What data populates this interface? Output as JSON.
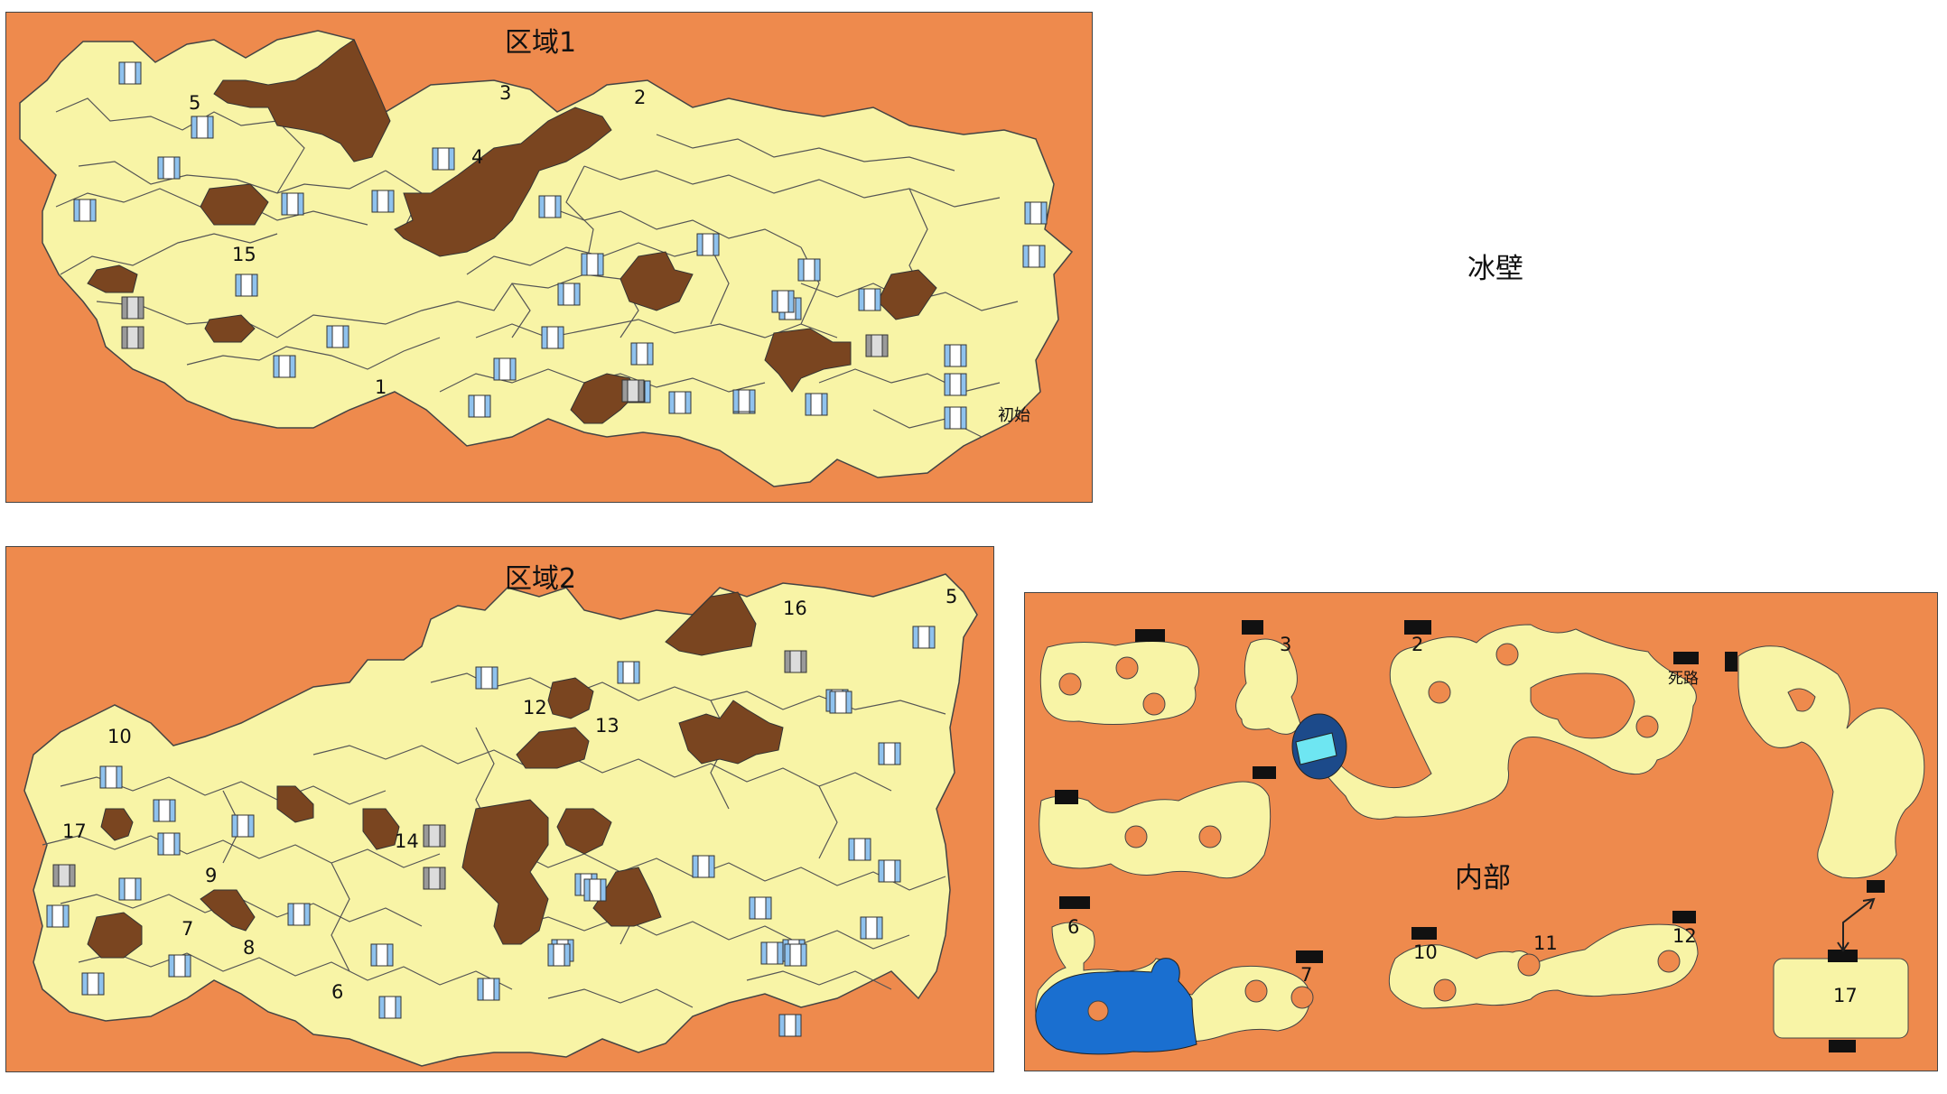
{
  "ice_wall_label": "冰壁",
  "area1": {
    "title": "区域1",
    "labels": [
      "1",
      "2",
      "3",
      "4",
      "5",
      "15",
      "初始"
    ]
  },
  "area2": {
    "title": "区域2",
    "labels": [
      "5",
      "6",
      "7",
      "8",
      "9",
      "10",
      "12",
      "13",
      "14",
      "16",
      "17"
    ]
  },
  "interior": {
    "title": "内部",
    "labels": [
      "2",
      "3",
      "6",
      "7",
      "10",
      "11",
      "12",
      "17",
      "死路"
    ]
  },
  "colors": {
    "background": "#ee8a4d",
    "floor": "#f8f4a6",
    "rock": "#7a4520",
    "door_blue": "#8fc2ee",
    "door_gray": "#9a9a9a",
    "water": "#1a6fd0",
    "ice_dark": "#1c4a8a",
    "ice_light": "#6ee6f2",
    "marker": "#111111"
  }
}
